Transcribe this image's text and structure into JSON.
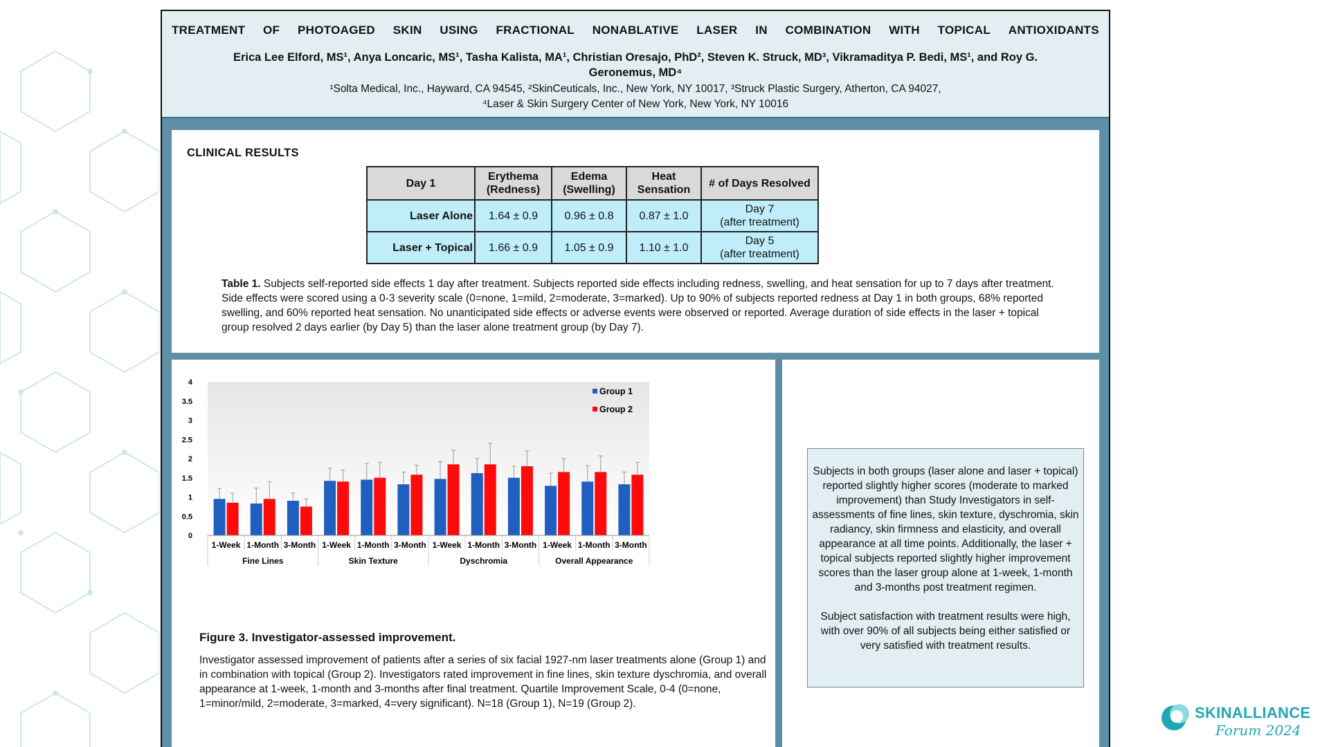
{
  "header": {
    "title_words": [
      "TREATMENT",
      "OF",
      "PHOTOAGED",
      "SKIN",
      "USING",
      "FRACTIONAL",
      "NONABLATIVE",
      "LASER",
      "IN",
      "COMBINATION",
      "WITH",
      "TOPICAL",
      "ANTIOXIDANTS"
    ],
    "authors": "Erica Lee Elford, MS¹, Anya Loncaric, MS¹, Tasha Kalista, MA¹, Christian Oresajo, PhD², Steven K. Struck, MD³, Vikramaditya P. Bedi, MS¹, and Roy G. Geronemus, MD⁴",
    "affiliations_1": "¹Solta Medical, Inc., Hayward, CA 94545, ²SkinCeuticals, Inc., New York, NY 10017, ³Struck Plastic Surgery, Atherton, CA 94027,",
    "affiliations_2": "⁴Laser & Skin Surgery Center of New York, New York, NY 10016"
  },
  "clinical": {
    "section_title": "CLINICAL RESULTS",
    "table": {
      "headers": [
        "Day 1",
        "Erythema (Redness)",
        "Edema (Swelling)",
        "Heat Sensation",
        "# of Days Resolved"
      ],
      "rows": [
        {
          "label": "Laser Alone",
          "erythema": "1.64 ± 0.9",
          "edema": "0.96 ± 0.8",
          "heat": "0.87 ± 1.0",
          "days_main": "Day 7",
          "days_sub": "(after treatment)"
        },
        {
          "label": "Laser + Topical",
          "erythema": "1.66 ± 0.9",
          "edema": "1.05 ± 0.9",
          "heat": "1.10 ± 1.0",
          "days_main": "Day 5",
          "days_sub": "(after treatment)"
        }
      ]
    },
    "caption_label": "Table 1.",
    "caption_text": "Subjects self-reported side effects 1 day after treatment. Subjects reported side effects including redness, swelling, and heat sensation for up to 7 days after treatment. Side effects were scored using a 0-3 severity scale (0=none, 1=mild, 2=moderate, 3=marked). Up to 90% of subjects reported redness at Day 1 in both groups, 68% reported swelling, and 60% reported heat sensation. No unanticipated side effects or adverse events were observed or reported. Average duration of side effects in the laser + topical group resolved 2 days earlier (by Day 5) than the laser alone treatment group (by Day 7)."
  },
  "chart_data": {
    "type": "bar",
    "groups": [
      "Fine Lines",
      "Skin Texture",
      "Dyschromia",
      "Overall Appearance"
    ],
    "categories": [
      "1-Week",
      "1-Month",
      "3-Month",
      "1-Week",
      "1-Month",
      "3-Month",
      "1-Week",
      "1-Month",
      "3-Month",
      "1-Week",
      "1-Month",
      "3-Month"
    ],
    "series": [
      {
        "name": "Group 1",
        "color": "#1f5fbf",
        "values": [
          0.95,
          0.83,
          0.9,
          1.42,
          1.45,
          1.33,
          1.47,
          1.62,
          1.5,
          1.29,
          1.4,
          1.33
        ],
        "errors": [
          0.27,
          0.4,
          0.2,
          0.33,
          0.42,
          0.32,
          0.45,
          0.38,
          0.3,
          0.33,
          0.42,
          0.32
        ]
      },
      {
        "name": "Group 2",
        "color": "#ff0a0a",
        "values": [
          0.85,
          0.95,
          0.75,
          1.4,
          1.5,
          1.58,
          1.85,
          1.85,
          1.8,
          1.65,
          1.65,
          1.58
        ],
        "errors": [
          0.25,
          0.45,
          0.2,
          0.3,
          0.4,
          0.25,
          0.37,
          0.55,
          0.4,
          0.35,
          0.42,
          0.32
        ]
      }
    ],
    "yticks": [
      "0",
      "0.5",
      "1",
      "1.5",
      "2",
      "2.5",
      "3",
      "3.5",
      "4"
    ],
    "ylim": [
      0,
      4
    ],
    "legend_position": "top-right",
    "grid": false
  },
  "figure": {
    "title": "Figure 3. Investigator-assessed improvement.",
    "description": "Investigator assessed improvement of patients after a series of six facial 1927-nm laser treatments alone (Group 1) and in combination with topical (Group 2). Investigators rated improvement in fine lines, skin texture dyschromia, and overall appearance at 1-week, 1-month and 3-months after final treatment. Quartile Improvement Scale, 0-4 (0=none, 1=minor/mild, 2=moderate, 3=marked, 4=very significant). N=18 (Group 1), N=19 (Group 2)."
  },
  "summary": {
    "paragraph_1": "Subjects in both groups (laser alone and laser + topical) reported slightly higher scores (moderate to marked improvement) than Study Investigators in self-assessments of fine lines, skin texture, dyschromia, skin radiancy, skin firmness and elasticity, and overall appearance at all time points. Additionally, the laser + topical subjects reported slightly higher improvement scores than the laser group alone at 1-week, 1-month and 3-months post treatment regimen.",
    "paragraph_2": "Subject satisfaction with treatment results were high, with over 90% of all subjects being either satisfied or very satisfied with treatment results."
  },
  "logo": {
    "name": "SKINALLIANCE",
    "sub": "Forum 2024",
    "color": "#1fa7b5"
  }
}
